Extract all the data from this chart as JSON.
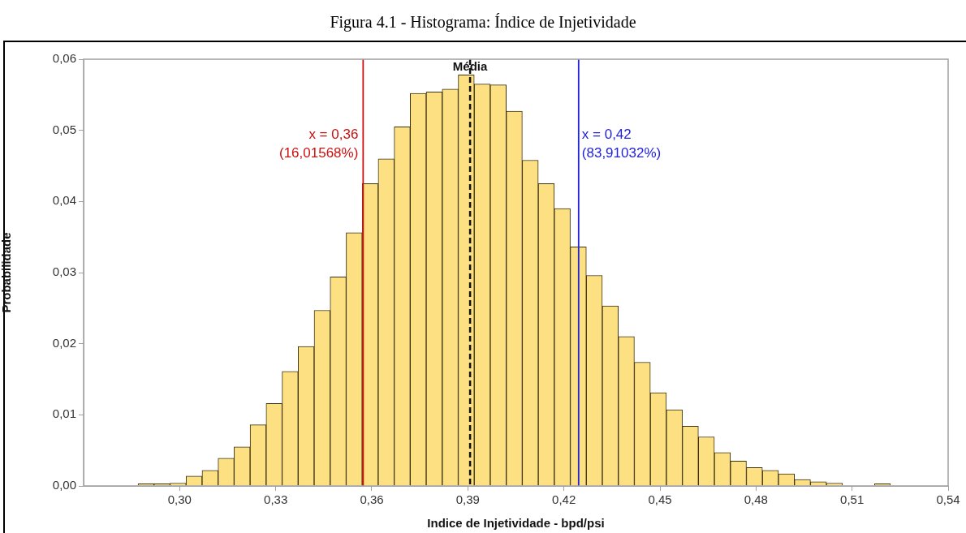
{
  "chart_data": {
    "type": "histogram",
    "title": "Figura 4.1 - Histograma: Índice de Injetividade",
    "xlabel": "Indice de Injetividade - bpd/psi",
    "ylabel": "Probabilidade",
    "bins": [
      0.287,
      0.292,
      0.297,
      0.302,
      0.307,
      0.312,
      0.317,
      0.322,
      0.327,
      0.332,
      0.337,
      0.342,
      0.347,
      0.352,
      0.357,
      0.362,
      0.367,
      0.372,
      0.377,
      0.382,
      0.387,
      0.392,
      0.397,
      0.402,
      0.407,
      0.412,
      0.417,
      0.422,
      0.427,
      0.432,
      0.437,
      0.442,
      0.447,
      0.452,
      0.457,
      0.462,
      0.467,
      0.472,
      0.477,
      0.482,
      0.487,
      0.492,
      0.497,
      0.502,
      0.507,
      0.512,
      0.517,
      0.522
    ],
    "values": [
      0.0003,
      0.0003,
      0.0004,
      0.0014,
      0.0022,
      0.0039,
      0.0055,
      0.0086,
      0.0116,
      0.0161,
      0.0196,
      0.0247,
      0.0294,
      0.0356,
      0.0425,
      0.046,
      0.0505,
      0.0552,
      0.0554,
      0.0558,
      0.0578,
      0.0565,
      0.0564,
      0.0527,
      0.0458,
      0.0425,
      0.039,
      0.0336,
      0.0296,
      0.0253,
      0.021,
      0.0174,
      0.0131,
      0.0107,
      0.0084,
      0.0069,
      0.0047,
      0.0035,
      0.0026,
      0.0022,
      0.0017,
      0.0009,
      0.0006,
      0.0004,
      0,
      0,
      0.0003
    ],
    "color": "#fde081",
    "xlim": [
      0.27,
      0.54
    ],
    "xticks": [
      {
        "value": 0.3,
        "label": "0,30"
      },
      {
        "value": 0.33,
        "label": "0,33"
      },
      {
        "value": 0.36,
        "label": "0,36"
      },
      {
        "value": 0.39,
        "label": "0,39"
      },
      {
        "value": 0.42,
        "label": "0,42"
      },
      {
        "value": 0.45,
        "label": "0,45"
      },
      {
        "value": 0.48,
        "label": "0,48"
      },
      {
        "value": 0.51,
        "label": "0,51"
      },
      {
        "value": 0.54,
        "label": "0,54"
      }
    ],
    "ylim": [
      0,
      0.06
    ],
    "yticks": [
      {
        "value": 0,
        "label": "0,00"
      },
      {
        "value": 0.01,
        "label": "0,01"
      },
      {
        "value": 0.02,
        "label": "0,02"
      },
      {
        "value": 0.03,
        "label": "0,03"
      },
      {
        "value": 0.04,
        "label": "0,04"
      },
      {
        "value": 0.05,
        "label": "0,05"
      },
      {
        "value": 0.06,
        "label": "0,06"
      }
    ],
    "ref_lines": [
      {
        "axis": "x",
        "value": 0.3573,
        "label": "x = 0,36\n(16,01568%)",
        "color": "#cc1111"
      },
      {
        "axis": "x",
        "value": 0.4246,
        "label": "x = 0,42\n(83,91032%)",
        "color": "#2222dd"
      },
      {
        "axis": "x",
        "value": 0.3907,
        "label": "Média",
        "color": "#111111",
        "line_style": "dashed"
      }
    ],
    "grid": false,
    "legend": false
  }
}
